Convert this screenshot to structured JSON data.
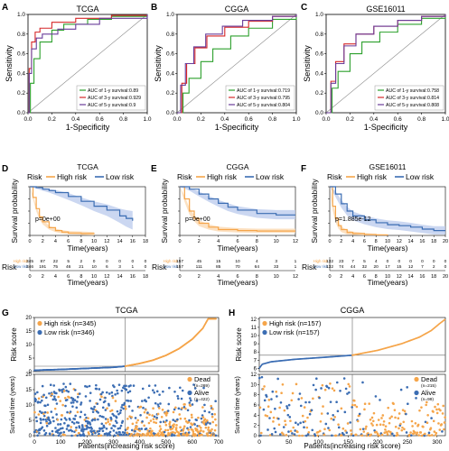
{
  "colors": {
    "y1": "#2ca02c",
    "y3": "#d62728",
    "y5": "#6a3d9a",
    "high": "#f5a54a",
    "low": "#3b6db3",
    "dead": "#f5a54a",
    "alive": "#3b6db3",
    "band_high": "#fbd7ae",
    "band_low": "#b9c9ec"
  },
  "panels": {
    "A": {
      "letter": "A",
      "title": "TCGA"
    },
    "B": {
      "letter": "B",
      "title": "CGGA"
    },
    "C": {
      "letter": "C",
      "title": "GSE16011"
    },
    "D": {
      "letter": "D",
      "title": "TCGA"
    },
    "E": {
      "letter": "E",
      "title": "CGGA"
    },
    "F": {
      "letter": "F",
      "title": "GSE16011"
    },
    "G": {
      "letter": "G",
      "title": "TCGA"
    },
    "H": {
      "letter": "H",
      "title": "CGGA"
    }
  },
  "chart_data": [
    {
      "id": "A",
      "type": "line",
      "title": "TCGA",
      "xlabel": "1-Specificity",
      "ylabel": "Sensitivity",
      "xlim": [
        0,
        1
      ],
      "ylim": [
        0,
        1
      ],
      "xticks": [
        "0.0",
        "0.2",
        "0.4",
        "0.6",
        "0.8",
        "1.0"
      ],
      "yticks": [
        "0.0",
        "0.2",
        "0.4",
        "0.6",
        "0.8",
        "1.0"
      ],
      "legend": "bottom-right",
      "series": [
        {
          "name": "AUC of 1-y survival:",
          "auc": "0.89",
          "x": [
            0,
            0.02,
            0.05,
            0.1,
            0.2,
            0.3,
            0.5,
            0.7,
            1.0
          ],
          "y": [
            0,
            0.3,
            0.55,
            0.72,
            0.84,
            0.9,
            0.95,
            0.98,
            1.0
          ]
        },
        {
          "name": "AUC of 3-y survival:",
          "auc": "0.929",
          "x": [
            0,
            0.01,
            0.03,
            0.06,
            0.1,
            0.2,
            0.4,
            0.7,
            1.0
          ],
          "y": [
            0,
            0.45,
            0.72,
            0.82,
            0.86,
            0.92,
            0.96,
            0.99,
            1.0
          ]
        },
        {
          "name": "AUC of 5-y survival:",
          "auc": "0.9",
          "x": [
            0,
            0.01,
            0.03,
            0.07,
            0.12,
            0.25,
            0.4,
            0.6,
            1.0
          ],
          "y": [
            0,
            0.4,
            0.65,
            0.76,
            0.8,
            0.85,
            0.9,
            0.96,
            1.0
          ]
        }
      ]
    },
    {
      "id": "B",
      "type": "line",
      "title": "CGGA",
      "xlabel": "1-Specificity",
      "ylabel": "Sensitivity",
      "xlim": [
        0,
        1
      ],
      "ylim": [
        0,
        1
      ],
      "xticks": [
        "0.0",
        "0.2",
        "0.4",
        "0.6",
        "0.8",
        "1.0"
      ],
      "yticks": [
        "0.0",
        "0.2",
        "0.4",
        "0.6",
        "0.8",
        "1.0"
      ],
      "legend": "bottom-right",
      "series": [
        {
          "name": "AUC of 1-y survival:",
          "auc": "0.719",
          "x": [
            0,
            0.05,
            0.1,
            0.2,
            0.3,
            0.45,
            0.6,
            0.8,
            1.0
          ],
          "y": [
            0,
            0.2,
            0.35,
            0.52,
            0.65,
            0.78,
            0.86,
            0.95,
            1.0
          ]
        },
        {
          "name": "AUC of 3-y survival:",
          "auc": "0.795",
          "x": [
            0,
            0.04,
            0.08,
            0.15,
            0.25,
            0.4,
            0.6,
            0.8,
            1.0
          ],
          "y": [
            0,
            0.3,
            0.5,
            0.66,
            0.78,
            0.87,
            0.93,
            0.98,
            1.0
          ]
        },
        {
          "name": "AUC of 5-y survival:",
          "auc": "0.804",
          "x": [
            0,
            0.03,
            0.07,
            0.14,
            0.24,
            0.38,
            0.55,
            0.8,
            1.0
          ],
          "y": [
            0,
            0.28,
            0.5,
            0.67,
            0.8,
            0.88,
            0.94,
            0.98,
            1.0
          ]
        }
      ]
    },
    {
      "id": "C",
      "type": "line",
      "title": "GSE16011",
      "xlabel": "1-Specificity",
      "ylabel": "Sensitivity",
      "xlim": [
        0,
        1
      ],
      "ylim": [
        0,
        1
      ],
      "xticks": [
        "0.0",
        "0.2",
        "0.4",
        "0.6",
        "0.8",
        "1.0"
      ],
      "yticks": [
        "0.0",
        "0.2",
        "0.4",
        "0.6",
        "0.8",
        "1.0"
      ],
      "legend": "bottom-right",
      "series": [
        {
          "name": "AUC of 1-y survival:",
          "auc": "0.758",
          "x": [
            0,
            0.05,
            0.1,
            0.2,
            0.3,
            0.45,
            0.6,
            0.8,
            1.0
          ],
          "y": [
            0,
            0.25,
            0.42,
            0.6,
            0.72,
            0.82,
            0.9,
            0.96,
            1.0
          ]
        },
        {
          "name": "AUC of 3-y survival:",
          "auc": "0.814",
          "x": [
            0,
            0.04,
            0.08,
            0.15,
            0.25,
            0.4,
            0.6,
            0.8,
            1.0
          ],
          "y": [
            0,
            0.32,
            0.52,
            0.7,
            0.8,
            0.88,
            0.94,
            0.98,
            1.0
          ]
        },
        {
          "name": "AUC of 5-y survival:",
          "auc": "0.808",
          "x": [
            0,
            0.04,
            0.08,
            0.15,
            0.25,
            0.4,
            0.6,
            0.8,
            1.0
          ],
          "y": [
            0,
            0.3,
            0.5,
            0.68,
            0.8,
            0.88,
            0.94,
            0.98,
            1.0
          ]
        }
      ]
    },
    {
      "id": "D",
      "type": "line",
      "title": "TCGA",
      "xlabel": "Time(years)",
      "ylabel": "Survival probability",
      "xlim": [
        0,
        18
      ],
      "ylim": [
        0,
        1
      ],
      "xticks": [
        "0",
        "2",
        "4",
        "6",
        "8",
        "10",
        "12",
        "14",
        "16",
        "18"
      ],
      "yticks": [
        "0.00",
        "0.25",
        "0.50",
        "0.75",
        "1.00"
      ],
      "legend_title": "Risk",
      "legend": "top",
      "pvalue": "p=0e+00",
      "series": [
        {
          "name": "High risk",
          "x": [
            0,
            0.5,
            1,
            1.5,
            2,
            3,
            4,
            5,
            6,
            8,
            10
          ],
          "y": [
            1,
            0.78,
            0.55,
            0.38,
            0.28,
            0.16,
            0.1,
            0.07,
            0.05,
            0.04,
            0.03
          ],
          "lo": [
            1,
            0.74,
            0.5,
            0.33,
            0.23,
            0.12,
            0.07,
            0.04,
            0.02,
            0.01,
            0.0
          ],
          "hi": [
            1,
            0.82,
            0.6,
            0.43,
            0.33,
            0.2,
            0.14,
            0.11,
            0.09,
            0.08,
            0.07
          ]
        },
        {
          "name": "Low risk",
          "x": [
            0,
            1,
            2,
            3,
            4,
            6,
            8,
            10,
            12,
            14,
            15,
            16
          ],
          "y": [
            1,
            0.98,
            0.95,
            0.92,
            0.88,
            0.8,
            0.7,
            0.6,
            0.52,
            0.4,
            0.35,
            0.3
          ],
          "lo": [
            1,
            0.96,
            0.92,
            0.88,
            0.83,
            0.73,
            0.62,
            0.5,
            0.4,
            0.26,
            0.18,
            0.12
          ],
          "hi": [
            1,
            1.0,
            0.98,
            0.96,
            0.93,
            0.87,
            0.78,
            0.7,
            0.64,
            0.55,
            0.52,
            0.5
          ]
        }
      ],
      "risk_table": {
        "label": "Risk",
        "rows": [
          {
            "name": "High risk",
            "counts": [
              "345",
              "87",
              "22",
              "5",
              "2",
              "0",
              "0",
              "0",
              "0",
              "0"
            ]
          },
          {
            "name": "Low risk",
            "counts": [
              "346",
              "191",
              "75",
              "46",
              "21",
              "10",
              "6",
              "3",
              "1",
              "0"
            ]
          }
        ]
      }
    },
    {
      "id": "E",
      "type": "line",
      "title": "CGGA",
      "xlabel": "Time(years)",
      "ylabel": "Survival probability",
      "xlim": [
        0,
        12
      ],
      "ylim": [
        0,
        1
      ],
      "xticks": [
        "0",
        "2",
        "4",
        "6",
        "8",
        "10",
        "12"
      ],
      "yticks": [
        "0.00",
        "0.25",
        "0.50",
        "0.75",
        "1.00"
      ],
      "legend_title": "Risk",
      "legend": "top",
      "pvalue": "p=0e+00",
      "series": [
        {
          "name": "High risk",
          "x": [
            0,
            0.5,
            1,
            1.5,
            2,
            3,
            4,
            6,
            8,
            10,
            12
          ],
          "y": [
            1,
            0.75,
            0.5,
            0.35,
            0.25,
            0.17,
            0.12,
            0.1,
            0.09,
            0.09,
            0.09
          ],
          "lo": [
            1,
            0.69,
            0.43,
            0.29,
            0.19,
            0.12,
            0.08,
            0.06,
            0.05,
            0.05,
            0.05
          ],
          "hi": [
            1,
            0.81,
            0.57,
            0.42,
            0.31,
            0.23,
            0.18,
            0.15,
            0.14,
            0.14,
            0.14
          ]
        },
        {
          "name": "Low risk",
          "x": [
            0,
            1,
            2,
            3,
            4,
            5,
            6,
            8,
            10,
            12
          ],
          "y": [
            1,
            0.95,
            0.85,
            0.75,
            0.66,
            0.58,
            0.52,
            0.45,
            0.42,
            0.42
          ],
          "lo": [
            1,
            0.92,
            0.8,
            0.69,
            0.59,
            0.5,
            0.44,
            0.36,
            0.33,
            0.33
          ],
          "hi": [
            1,
            0.98,
            0.9,
            0.81,
            0.73,
            0.66,
            0.6,
            0.54,
            0.52,
            0.52
          ]
        }
      ],
      "risk_table": {
        "label": "Risk",
        "rows": [
          {
            "name": "High risk",
            "counts": [
              "157",
              "45",
              "15",
              "10",
              "4",
              "3",
              "1"
            ]
          },
          {
            "name": "Low risk",
            "counts": [
              "157",
              "111",
              "85",
              "70",
              "64",
              "33",
              "1"
            ]
          }
        ]
      }
    },
    {
      "id": "F",
      "type": "line",
      "title": "GSE16011",
      "xlabel": "Time(years)",
      "ylabel": "Survival probability",
      "xlim": [
        0,
        20
      ],
      "ylim": [
        0,
        1
      ],
      "xticks": [
        "0",
        "2",
        "4",
        "6",
        "8",
        "10",
        "12",
        "14",
        "16",
        "18",
        "20"
      ],
      "yticks": [
        "0.00",
        "0.25",
        "0.50",
        "0.75",
        "1.00"
      ],
      "legend_title": "Risk",
      "legend": "top",
      "pvalue": "p=1.885e-12",
      "series": [
        {
          "name": "High risk",
          "x": [
            0,
            0.5,
            1,
            1.5,
            2,
            3,
            4,
            6,
            8,
            10
          ],
          "y": [
            1,
            0.6,
            0.35,
            0.2,
            0.12,
            0.06,
            0.04,
            0.02,
            0.01,
            0.0
          ],
          "lo": [
            1,
            0.52,
            0.27,
            0.14,
            0.07,
            0.02,
            0.01,
            0.0,
            0.0,
            0.0
          ],
          "hi": [
            1,
            0.68,
            0.43,
            0.27,
            0.18,
            0.11,
            0.08,
            0.05,
            0.03,
            0.02
          ]
        },
        {
          "name": "Low risk",
          "x": [
            0,
            1,
            2,
            3,
            4,
            6,
            8,
            10,
            12,
            14,
            16,
            18,
            20
          ],
          "y": [
            1,
            0.85,
            0.65,
            0.5,
            0.4,
            0.32,
            0.26,
            0.22,
            0.2,
            0.17,
            0.13,
            0.1,
            0.1
          ],
          "lo": [
            1,
            0.79,
            0.57,
            0.41,
            0.31,
            0.23,
            0.17,
            0.13,
            0.11,
            0.08,
            0.05,
            0.02,
            0.02
          ],
          "hi": [
            1,
            0.91,
            0.73,
            0.59,
            0.49,
            0.41,
            0.35,
            0.31,
            0.29,
            0.26,
            0.22,
            0.19,
            0.19
          ]
        }
      ],
      "risk_table": {
        "label": "Risk",
        "rows": [
          {
            "name": "High risk",
            "counts": [
              "132",
              "23",
              "7",
              "5",
              "4",
              "0",
              "0",
              "0",
              "0",
              "0",
              "0"
            ]
          },
          {
            "name": "Low risk",
            "counts": [
              "132",
              "74",
              "44",
              "32",
              "20",
              "17",
              "15",
              "12",
              "7",
              "2",
              "0"
            ]
          }
        ]
      }
    },
    {
      "id": "G",
      "type": "scatter",
      "title": "TCGA",
      "xlabel": "Patients(increasing risk score)",
      "ylabel_top": "Risk score",
      "ylabel_bottom": "Survival time (years)",
      "n_patients": 691,
      "cutoff_index": 345,
      "xlim": [
        0,
        700
      ],
      "xticks": [
        "0",
        "100",
        "200",
        "300",
        "400",
        "500",
        "600",
        "700"
      ],
      "top_ylim": [
        0,
        20
      ],
      "top_yticks": [
        "0",
        "5",
        "10",
        "15",
        "20"
      ],
      "bottom_ylim": [
        0,
        20
      ],
      "bottom_yticks": [
        "0",
        "5",
        "10",
        "15",
        "20"
      ],
      "risk_curve": {
        "x": [
          0,
          100,
          200,
          300,
          345,
          400,
          450,
          500,
          550,
          600,
          640,
          660,
          700
        ],
        "y": [
          0.5,
          0.8,
          1.2,
          1.6,
          2.0,
          3.0,
          4.2,
          6.0,
          8.5,
          12,
          16,
          19.5,
          19.5
        ]
      },
      "legend_top": [
        {
          "name": "High risk (n=345)"
        },
        {
          "name": "Low risk (n=346)"
        }
      ],
      "legend_bottom": [
        {
          "name": "Dead",
          "n": "(n=269)"
        },
        {
          "name": "Alive",
          "n": "(n=422)"
        }
      ],
      "dead_fraction_low": 0.15,
      "dead_fraction_high": 0.63,
      "time_max": 17
    },
    {
      "id": "H",
      "type": "scatter",
      "title": "CGGA",
      "xlabel": "Patients(increasing risk score)",
      "ylabel_top": "Risk score",
      "ylabel_bottom": "Survival time (years)",
      "n_patients": 314,
      "cutoff_index": 157,
      "xlim": [
        0,
        314
      ],
      "xticks": [
        "0",
        "50",
        "100",
        "150",
        "200",
        "250",
        "300"
      ],
      "top_ylim": [
        5.6,
        12.2
      ],
      "top_yticks": [
        "6",
        "7",
        "8",
        "9",
        "10",
        "11",
        "12"
      ],
      "bottom_ylim": [
        0,
        12
      ],
      "bottom_yticks": [
        "0",
        "2",
        "4",
        "6",
        "8",
        "10",
        "12"
      ],
      "risk_curve": {
        "x": [
          0,
          5,
          20,
          60,
          120,
          157,
          200,
          240,
          270,
          290,
          305,
          314
        ],
        "y": [
          6.0,
          6.5,
          6.8,
          7.1,
          7.4,
          7.6,
          8.2,
          9.0,
          9.8,
          10.6,
          11.5,
          12.0
        ]
      },
      "legend_top": [
        {
          "name": "High risk (n=157)"
        },
        {
          "name": "Low risk (n=157)"
        }
      ],
      "legend_bottom": [
        {
          "name": "Dead",
          "n": "(n=215)"
        },
        {
          "name": "Alive",
          "n": "(n=99)"
        }
      ],
      "dead_fraction_low": 0.5,
      "dead_fraction_high": 0.87,
      "time_max": 11.5
    }
  ]
}
